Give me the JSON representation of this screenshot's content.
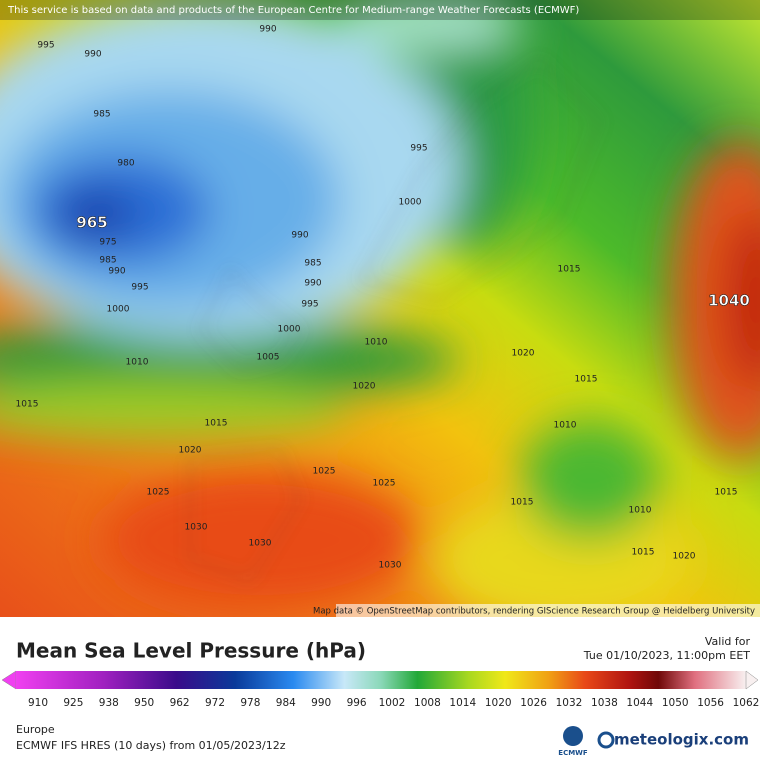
{
  "header": {
    "notice": "This service is based on data and products of the European Centre for Medium-range Weather Forecasts (ECMWF)"
  },
  "map": {
    "attribution": "Map data © OpenStreetMap contributors, rendering GIScience Research Group @ Heidelberg University",
    "isobar_labels": [
      "995",
      "990",
      "990",
      "985",
      "980",
      "965",
      "975",
      "985",
      "990",
      "995",
      "1000",
      "990",
      "985",
      "990",
      "995",
      "1000",
      "1005",
      "1010",
      "1015",
      "1015",
      "1020",
      "1025",
      "1025",
      "1030",
      "1030",
      "1030",
      "1025",
      "995",
      "1000",
      "1015",
      "1020",
      "1020",
      "1010",
      "1015",
      "1010",
      "1015",
      "1010",
      "1015",
      "1015",
      "1020",
      "1040"
    ]
  },
  "legend": {
    "title": "Mean Sea Level Pressure (hPa)",
    "valid_label": "Valid for",
    "valid_time": "Tue 01/10/2023, 11:00pm EET",
    "ticks": [
      "910",
      "925",
      "938",
      "950",
      "962",
      "972",
      "978",
      "984",
      "990",
      "996",
      "1002",
      "1008",
      "1014",
      "1020",
      "1026",
      "1032",
      "1038",
      "1044",
      "1050",
      "1056",
      "1062"
    ]
  },
  "footer": {
    "region": "Europe",
    "model": "ECMWF IFS HRES (10 days) from 01/05/2023/12z",
    "ecmwf_logo": "ECMWF",
    "brand": "meteologix.com"
  }
}
